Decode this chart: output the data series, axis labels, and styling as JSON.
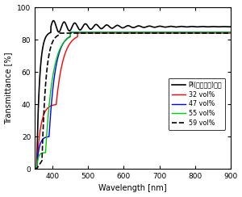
{
  "title": "",
  "xlabel": "Wavelength [nm]",
  "ylabel": "Transmittance [%]",
  "xlim": [
    350,
    900
  ],
  "ylim": [
    0,
    100
  ],
  "xticks": [
    400,
    500,
    600,
    700,
    800,
    900
  ],
  "yticks": [
    0,
    20,
    40,
    60,
    80,
    100
  ],
  "legend_entries": [
    {
      "label": "PI(ポリマー)のみ",
      "color": "#000000",
      "linestyle": "solid",
      "linewidth": 1.2
    },
    {
      "label": "32 vol%",
      "color": "#ff0000",
      "linestyle": "solid",
      "linewidth": 1.0
    },
    {
      "label": "47 vol%",
      "color": "#0000ff",
      "linestyle": "solid",
      "linewidth": 1.0
    },
    {
      "label": "55 vol%",
      "color": "#00cc00",
      "linestyle": "solid",
      "linewidth": 1.0
    },
    {
      "label": "59 vol%",
      "color": "#000000",
      "linestyle": "dashed",
      "linewidth": 1.2
    }
  ],
  "background_color": "#ffffff",
  "figsize": [
    3.0,
    2.44
  ],
  "dpi": 100
}
